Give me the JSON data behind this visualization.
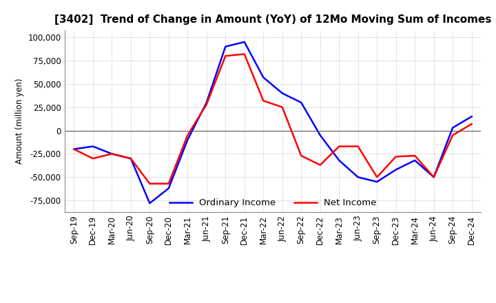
{
  "title": "[3402]  Trend of Change in Amount (YoY) of 12Mo Moving Sum of Incomes",
  "ylabel": "Amount (million yen)",
  "ylim": [
    -87500,
    107500
  ],
  "yticks": [
    -75000,
    -50000,
    -25000,
    0,
    25000,
    50000,
    75000,
    100000
  ],
  "x_labels": [
    "Sep-19",
    "Dec-19",
    "Mar-20",
    "Jun-20",
    "Sep-20",
    "Dec-20",
    "Mar-21",
    "Jun-21",
    "Sep-21",
    "Dec-21",
    "Mar-22",
    "Jun-22",
    "Sep-22",
    "Dec-22",
    "Mar-23",
    "Jun-23",
    "Sep-23",
    "Dec-23",
    "Mar-24",
    "Jun-24",
    "Sep-24",
    "Dec-24"
  ],
  "ordinary_income": [
    -20000,
    -17000,
    -25000,
    -30000,
    -78000,
    -62000,
    -10000,
    30000,
    90000,
    95000,
    57000,
    40000,
    30000,
    -5000,
    -32000,
    -50000,
    -55000,
    -42000,
    -32000,
    -50000,
    3000,
    15000
  ],
  "net_income": [
    -20000,
    -30000,
    -25000,
    -30000,
    -57000,
    -57000,
    -5000,
    28000,
    80000,
    82000,
    32000,
    25000,
    -27000,
    -37000,
    -17000,
    -17000,
    -50000,
    -28000,
    -27000,
    -50000,
    -5000,
    7000
  ],
  "ordinary_color": "#0000FF",
  "net_color": "#FF0000",
  "background_color": "#FFFFFF",
  "grid_color": "#AAAAAA",
  "title_fontsize": 11,
  "axis_fontsize": 8.5,
  "legend_fontsize": 9.5
}
